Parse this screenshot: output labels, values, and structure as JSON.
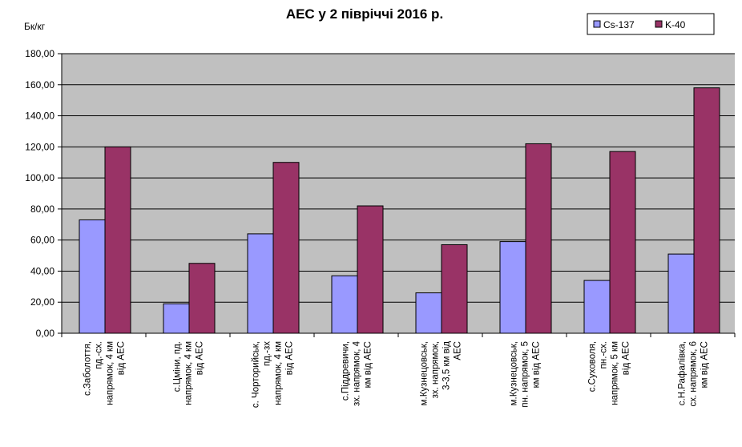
{
  "chart_data": {
    "type": "bar",
    "title": "АЕС у 2 півріччі 2016 р.",
    "ylabel": "Бк/кг",
    "ylim": [
      0,
      180
    ],
    "yticks": [
      "0,00",
      "20,00",
      "40,00",
      "60,00",
      "80,00",
      "100,00",
      "120,00",
      "140,00",
      "160,00",
      "180,00"
    ],
    "grid": true,
    "legend_position": "top-right",
    "categories": [
      [
        "с.Заболоття,",
        "пд.-сх.",
        "напрямок, 4 км",
        "від АЕС"
      ],
      [
        "с.Цміни, пд.",
        "напрямок, 4 км",
        "від АЕС"
      ],
      [
        "с. Чорторийськ,",
        "пд.-зх",
        "напрямок, 4 км",
        "від АЕС"
      ],
      [
        "с.Піддревичи,",
        "зх. напрямок, 4",
        "км від АЕС"
      ],
      [
        "м.Кузнецовськ,",
        "зх. напрямок,",
        "3-3,5 км від",
        "АЕС"
      ],
      [
        "м.Кузнецовськ,",
        "пн. напрямок, 5",
        "км від АЕС"
      ],
      [
        "с.Суховоля,",
        "пн.-сх.",
        "напрямок, 5 км",
        "від АЕС"
      ],
      [
        "с.Н.Рафалівка,",
        "сх. напрямок, 6",
        "км від АЕС"
      ]
    ],
    "series": [
      {
        "name": "Cs-137",
        "color": "#9999ff",
        "values": [
          73,
          19,
          64,
          37,
          26,
          59,
          34,
          51
        ]
      },
      {
        "name": "K-40",
        "color": "#993366",
        "values": [
          120,
          45,
          110,
          82,
          57,
          122,
          117,
          158
        ]
      }
    ],
    "colors": {
      "plot_background": "#c0c0c0",
      "gridline": "#000000"
    }
  }
}
